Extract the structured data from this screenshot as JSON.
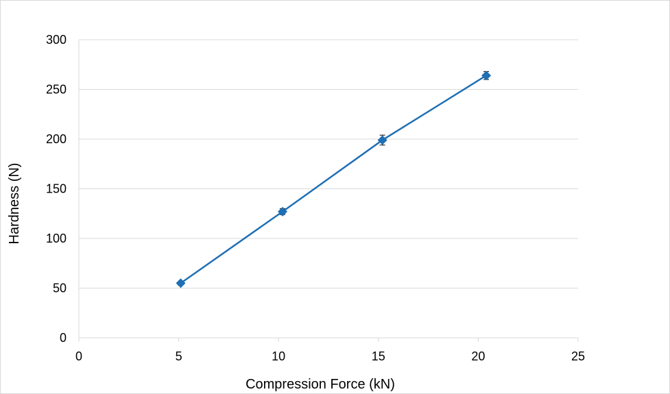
{
  "chart_data": {
    "type": "scatter",
    "title": "",
    "xlabel": "Compression Force (kN)",
    "ylabel": "Hardness (N)",
    "xlim": [
      0,
      25
    ],
    "ylim": [
      0,
      300
    ],
    "x_ticks": [
      0,
      5,
      10,
      15,
      20,
      25
    ],
    "y_ticks": [
      0,
      50,
      100,
      150,
      200,
      250,
      300
    ],
    "grid": "horizontal",
    "legend": "none",
    "series": [
      {
        "color": "#1f6fb4",
        "marker": "diamond",
        "line": "straight",
        "points": [
          {
            "x": 5.1,
            "y": 55,
            "err": 2
          },
          {
            "x": 10.2,
            "y": 127,
            "err": 3
          },
          {
            "x": 15.2,
            "y": 199,
            "err": 5
          },
          {
            "x": 20.4,
            "y": 264,
            "err": 4
          }
        ]
      }
    ]
  }
}
